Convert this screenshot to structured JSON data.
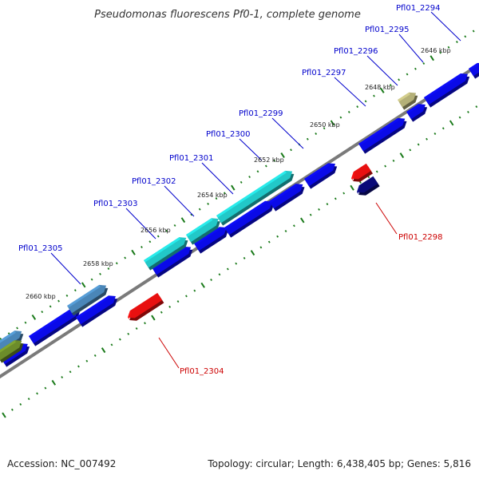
{
  "title": "Pseudomonas fluorescens Pf0-1, complete genome",
  "footer": {
    "accession": "Accession: NC_007492",
    "summary": "Topology: circular; Length: 6,438,405 bp; Genes: 5,816"
  },
  "colors": {
    "forward_label": "#0000cc",
    "reverse_label": "#cc0000",
    "backbone": "#7a7a7a",
    "tick": "#1a7a1a",
    "gene_blue": "#0a0ae8",
    "gene_cyan": "#22c8c8",
    "gene_steel": "#4a86b8",
    "gene_olive": "#6c8c2a",
    "gene_khaki": "#b4b078",
    "gene_red": "#e81010",
    "gene_navy": "#0a0a78"
  },
  "scale_labels": [
    "2646 kbp",
    "2648 kbp",
    "2650 kbp",
    "2652 kbp",
    "2654 kbp",
    "2656 kbp",
    "2658 kbp",
    "2660 kbp"
  ],
  "gene_labels": {
    "forward": [
      "Pfl01_2294",
      "Pfl01_2295",
      "Pfl01_2296",
      "Pfl01_2297",
      "Pfl01_2299",
      "Pfl01_2300",
      "Pfl01_2301",
      "Pfl01_2302",
      "Pfl01_2303",
      "Pfl01_2305"
    ],
    "reverse": [
      "Pfl01_2298",
      "Pfl01_2304"
    ]
  }
}
